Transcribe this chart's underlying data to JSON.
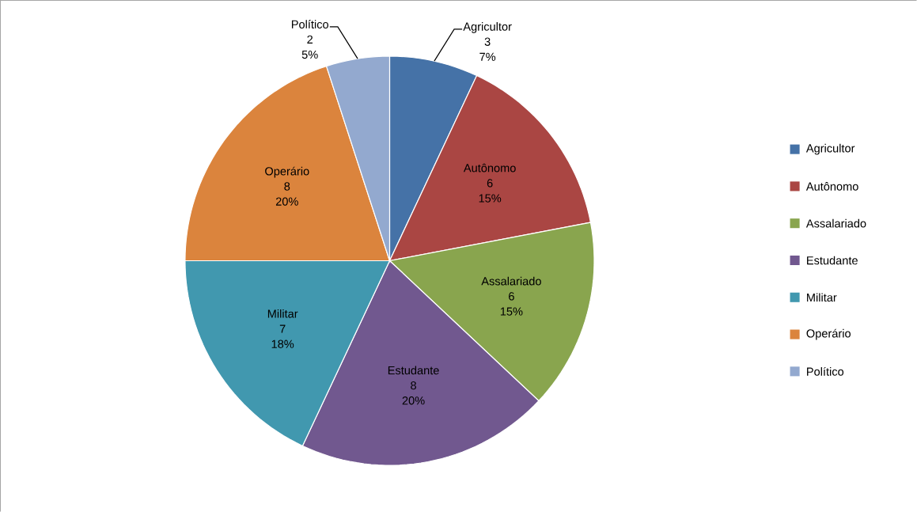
{
  "chart_data": {
    "type": "pie",
    "categories": [
      "Agricultor",
      "Autônomo",
      "Assalariado",
      "Estudante",
      "Militar",
      "Operário",
      "Político"
    ],
    "values": [
      7,
      15,
      15,
      20,
      18,
      20,
      5
    ],
    "colors": [
      "#4572a7",
      "#aa4643",
      "#89a54e",
      "#71588f",
      "#4198af",
      "#db843d",
      "#93a9cf"
    ],
    "value_labels": [
      "7%",
      "15%",
      "15%",
      "20%",
      "18%",
      "20%",
      "5%"
    ],
    "annotations": [
      "3",
      "6",
      "6",
      "8",
      "7",
      "8",
      "2"
    ],
    "legend": "right"
  }
}
